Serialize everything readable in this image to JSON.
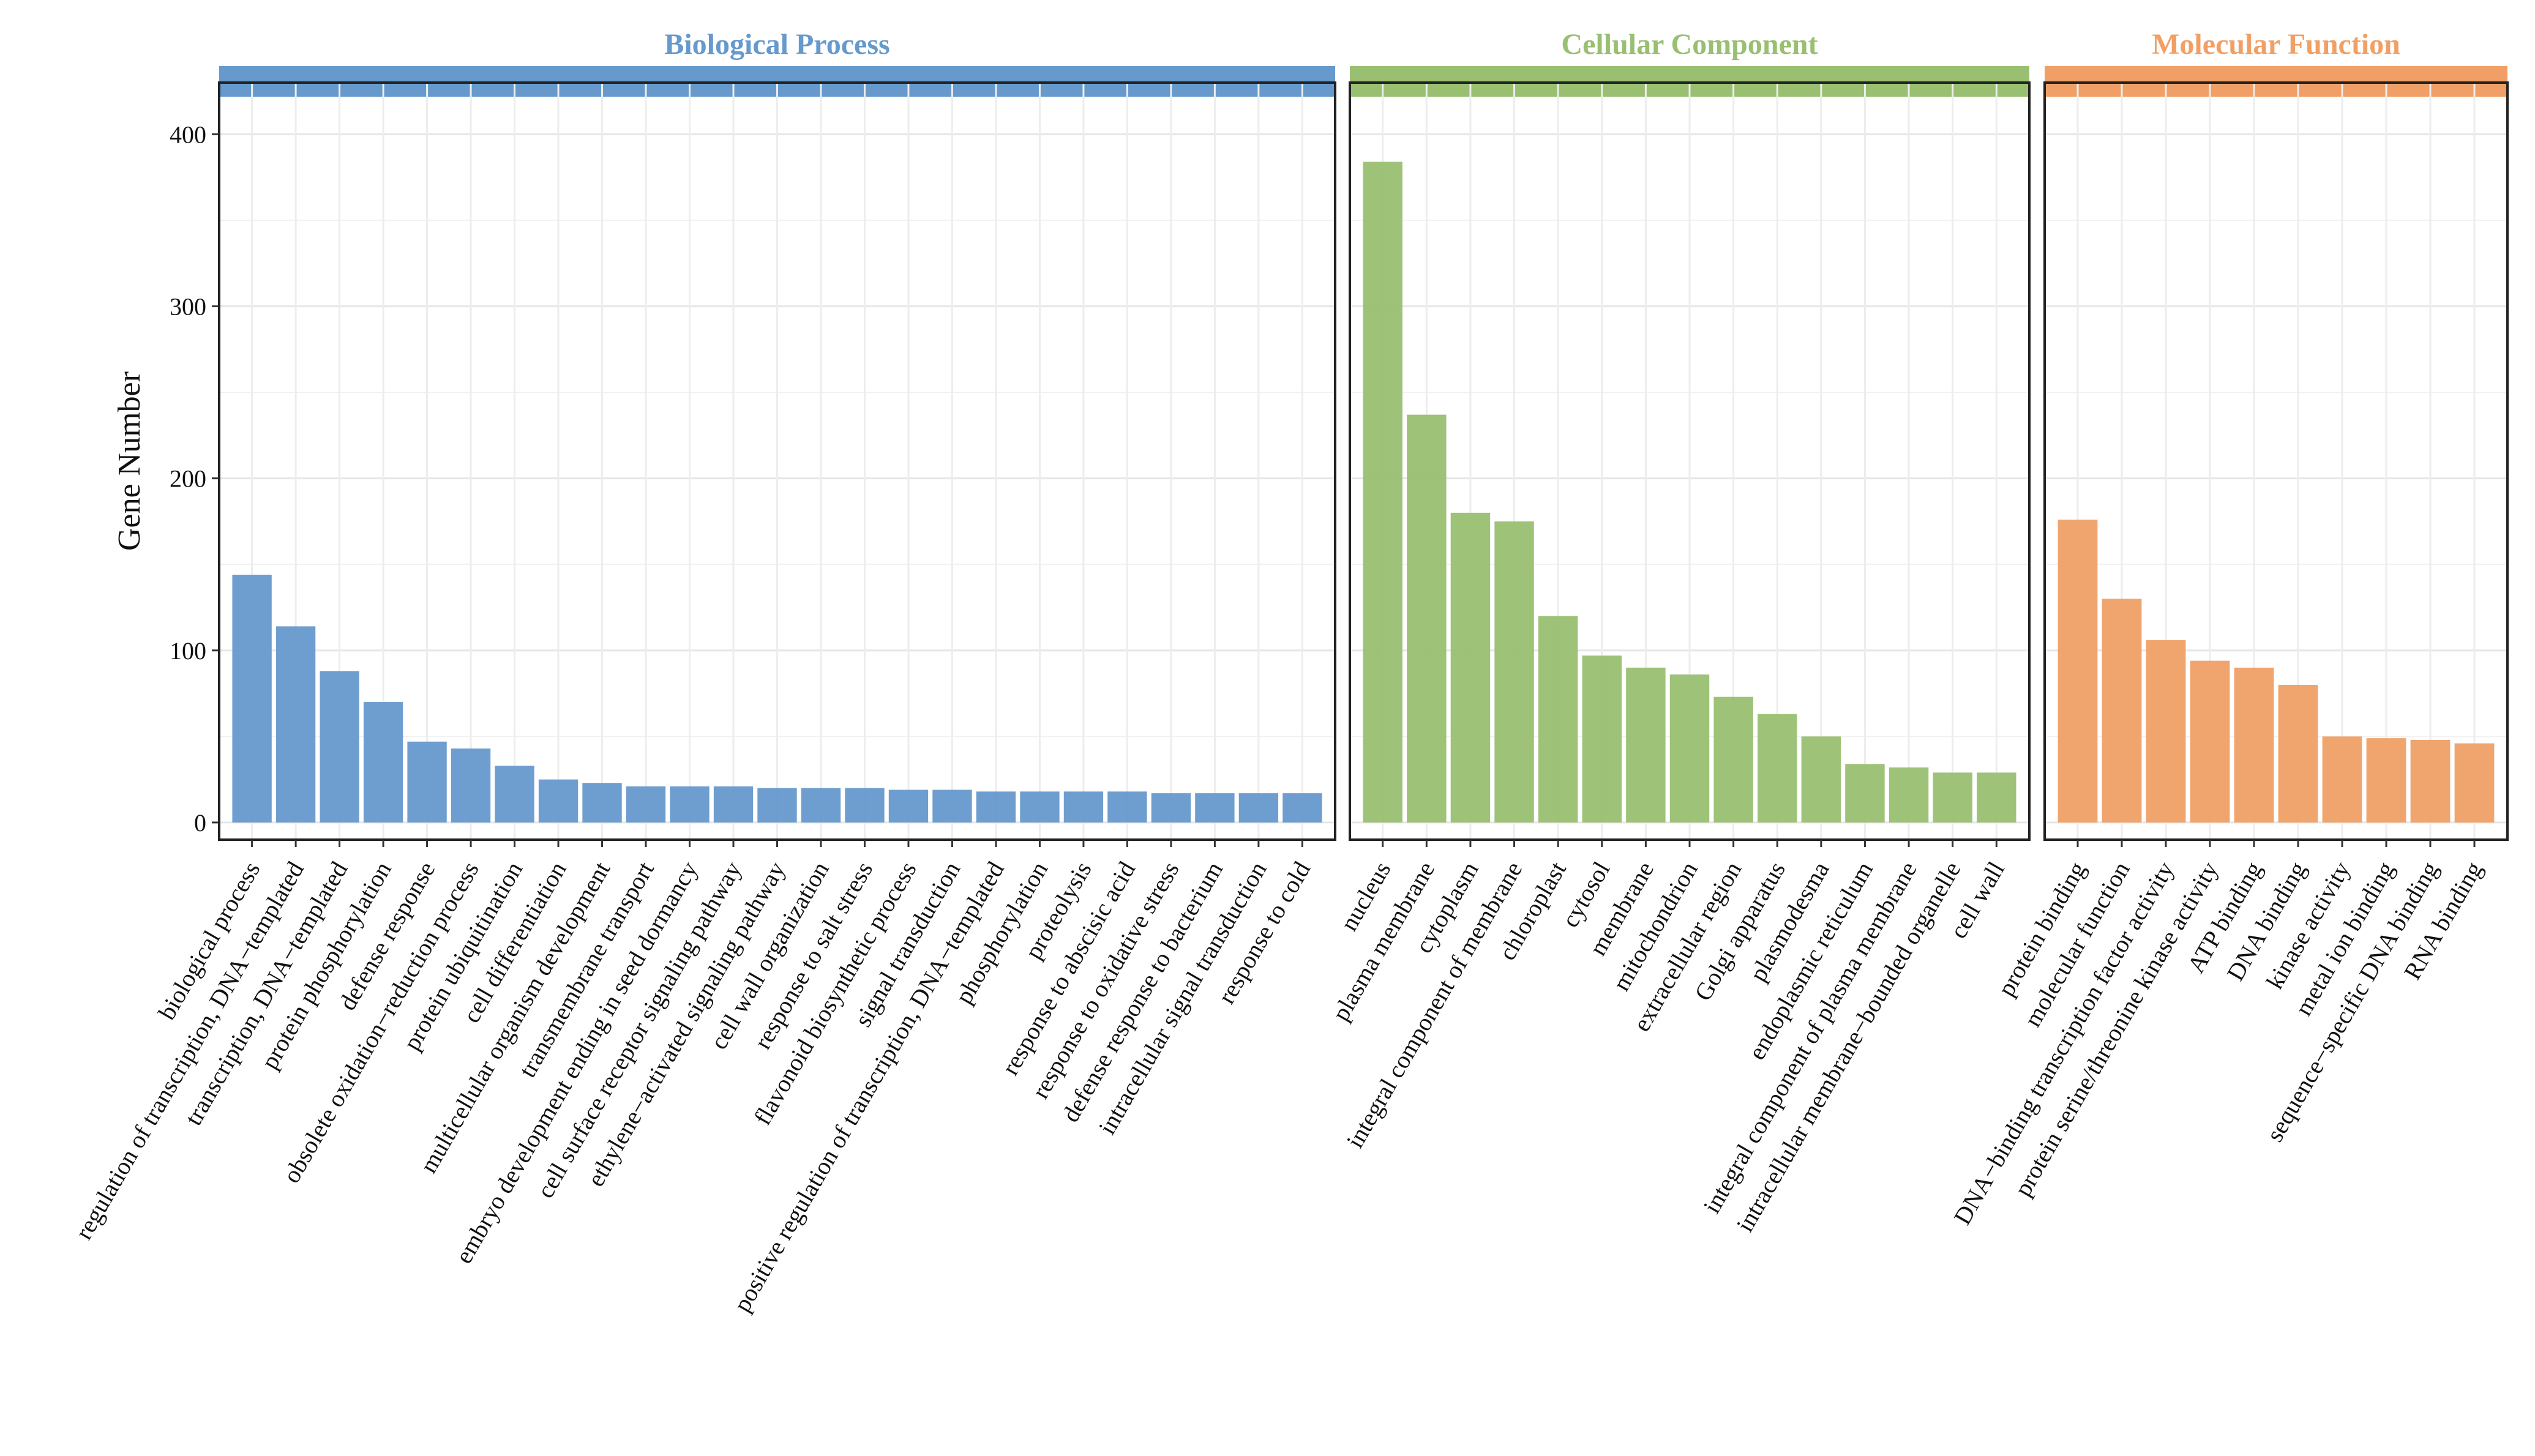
{
  "chart_data": {
    "type": "bar",
    "ylabel": "Gene Number",
    "xlabel": "",
    "ylim": [
      -10,
      430
    ],
    "yticks": [
      0,
      100,
      200,
      300,
      400
    ],
    "grid": true,
    "facets": [
      {
        "name": "Biological Process",
        "color": "#6699CC",
        "categories": [
          "biological process",
          "regulation of transcription, DNA−templated",
          "transcription, DNA−templated",
          "protein phosphorylation",
          "defense response",
          "obsolete oxidation−reduction process",
          "protein ubiquitination",
          "cell differentiation",
          "multicellular organism development",
          "transmembrane transport",
          "embryo development ending in seed dormancy",
          "cell surface receptor signaling pathway",
          "ethylene−activated signaling pathway",
          "cell wall organization",
          "response to salt stress",
          "flavonoid biosynthetic process",
          "signal transduction",
          "positive regulation of transcription, DNA−templated",
          "phosphorylation",
          "proteolysis",
          "response to abscisic acid",
          "response to oxidative stress",
          "defense response to bacterium",
          "intracellular signal transduction",
          "response to cold"
        ],
        "values": [
          144,
          114,
          88,
          70,
          47,
          43,
          33,
          25,
          23,
          21,
          21,
          21,
          20,
          20,
          20,
          19,
          19,
          18,
          18,
          18,
          18,
          17,
          17,
          17,
          17
        ]
      },
      {
        "name": "Cellular Component",
        "color": "#99BF71",
        "categories": [
          "nucleus",
          "plasma membrane",
          "cytoplasm",
          "integral component of membrane",
          "chloroplast",
          "cytosol",
          "membrane",
          "mitochondrion",
          "extracellular region",
          "Golgi apparatus",
          "plasmodesma",
          "endoplasmic reticulum",
          "integral component of plasma membrane",
          "intracellular membrane−bounded organelle",
          "cell wall"
        ],
        "values": [
          384,
          237,
          180,
          175,
          120,
          97,
          90,
          86,
          73,
          63,
          50,
          34,
          32,
          29,
          29
        ]
      },
      {
        "name": "Molecular Function",
        "color": "#F0A066",
        "categories": [
          "protein binding",
          "molecular function",
          "DNA−binding transcription factor activity",
          "protein serine/threonine kinase activity",
          "ATP binding",
          "DNA binding",
          "kinase activity",
          "metal ion binding",
          "sequence−specific DNA binding",
          "RNA binding"
        ],
        "values": [
          176,
          130,
          106,
          94,
          90,
          80,
          50,
          49,
          48,
          46
        ]
      }
    ]
  }
}
